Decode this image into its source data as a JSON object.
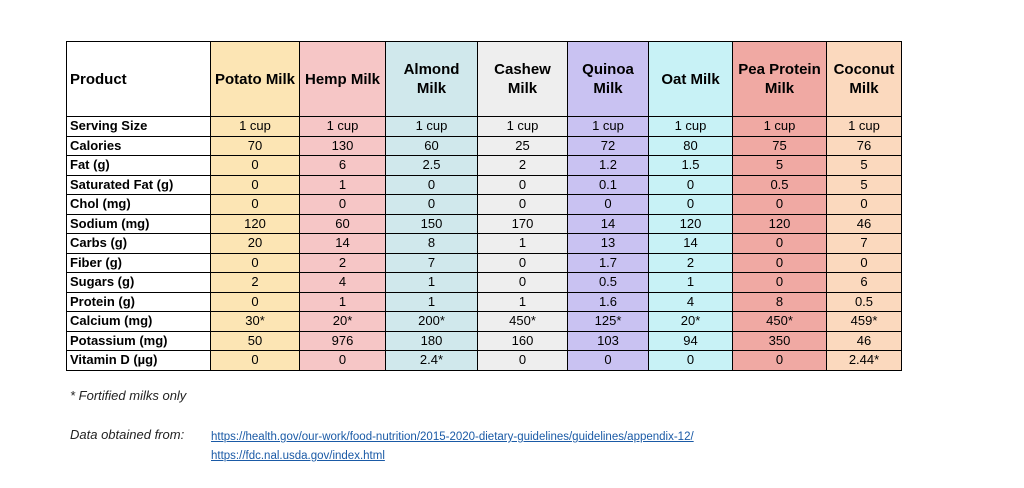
{
  "table": {
    "corner": "Product",
    "columns": [
      "Potato Milk",
      "Hemp Milk",
      "Almond Milk",
      "Cashew Milk",
      "Quinoa Milk",
      "Oat Milk",
      "Pea Protein Milk",
      "Coconut Milk"
    ],
    "column_colors": [
      "#fce5b4",
      "#f6c6c6",
      "#d0e8ec",
      "#eeeeee",
      "#c9c2f2",
      "#c8f2f6",
      "#f0a9a3",
      "#fbd9be"
    ],
    "rows": [
      {
        "label": "Serving Size",
        "values": [
          "1 cup",
          "1 cup",
          "1 cup",
          "1 cup",
          "1 cup",
          "1 cup",
          "1 cup",
          "1 cup"
        ]
      },
      {
        "label": "Calories",
        "values": [
          "70",
          "130",
          "60",
          "25",
          "72",
          "80",
          "75",
          "76"
        ]
      },
      {
        "label": "Fat (g)",
        "values": [
          "0",
          "6",
          "2.5",
          "2",
          "1.2",
          "1.5",
          "5",
          "5"
        ]
      },
      {
        "label": "Saturated Fat (g)",
        "values": [
          "0",
          "1",
          "0",
          "0",
          "0.1",
          "0",
          "0.5",
          "5"
        ]
      },
      {
        "label": "Chol (mg)",
        "values": [
          "0",
          "0",
          "0",
          "0",
          "0",
          "0",
          "0",
          "0"
        ]
      },
      {
        "label": "Sodium (mg)",
        "values": [
          "120",
          "60",
          "150",
          "170",
          "14",
          "120",
          "120",
          "46"
        ]
      },
      {
        "label": "Carbs (g)",
        "values": [
          "20",
          "14",
          "8",
          "1",
          "13",
          "14",
          "0",
          "7"
        ]
      },
      {
        "label": "Fiber (g)",
        "values": [
          "0",
          "2",
          "7",
          "0",
          "1.7",
          "2",
          "0",
          "0"
        ]
      },
      {
        "label": "Sugars (g)",
        "values": [
          "2",
          "4",
          "1",
          "0",
          "0.5",
          "1",
          "0",
          "6"
        ]
      },
      {
        "label": "Protein (g)",
        "values": [
          "0",
          "1",
          "1",
          "1",
          "1.6",
          "4",
          "8",
          "0.5"
        ]
      },
      {
        "label": "Calcium (mg)",
        "values": [
          "30*",
          "20*",
          "200*",
          "450*",
          "125*",
          "20*",
          "450*",
          "459*"
        ]
      },
      {
        "label": "Potassium (mg)",
        "values": [
          "50",
          "976",
          "180",
          "160",
          "103",
          "94",
          "350",
          "46"
        ]
      },
      {
        "label": "Vitamin D (µg)",
        "values": [
          "0",
          "0",
          "2.4*",
          "0",
          "0",
          "0",
          "0",
          "2.44*"
        ]
      }
    ]
  },
  "footnote": "* Fortified milks only",
  "source": {
    "label": "Data obtained from:",
    "links": [
      "https://health.gov/our-work/food-nutrition/2015-2020-dietary-guidelines/guidelines/appendix-12/",
      "https://fdc.nal.usda.gov/index.html"
    ]
  }
}
